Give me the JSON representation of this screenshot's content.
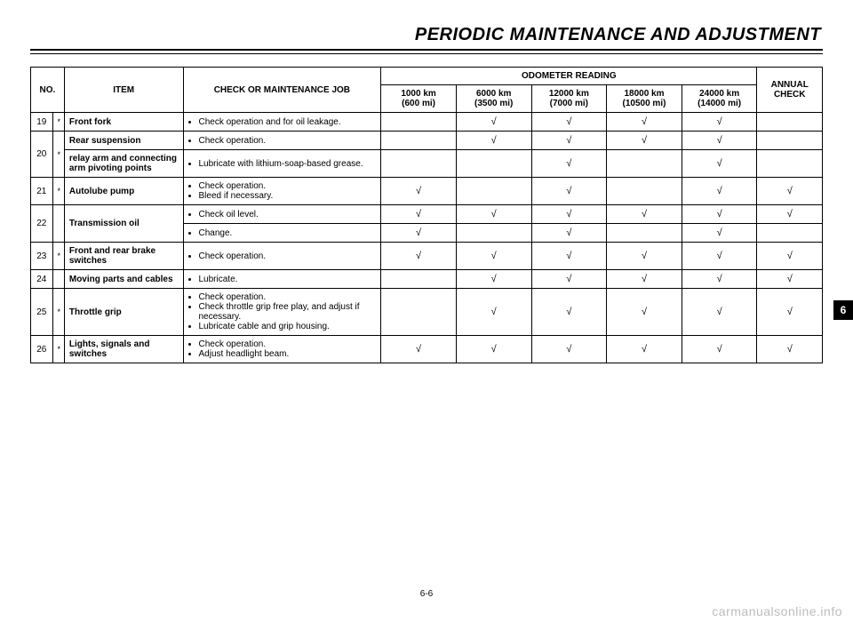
{
  "page": {
    "title": "PERIODIC MAINTENANCE AND ADJUSTMENT",
    "footer": "6-6",
    "tab": "6",
    "watermark": "carmanualsonline.info"
  },
  "table": {
    "headers": {
      "no": "NO.",
      "item": "ITEM",
      "job": "CHECK OR MAINTENANCE JOB",
      "odometer": "ODOMETER READING",
      "annual": "ANNUAL CHECK",
      "cols": [
        {
          "top": "1000 km",
          "bot": "(600 mi)"
        },
        {
          "top": "6000 km",
          "bot": "(3500 mi)"
        },
        {
          "top": "12000 km",
          "bot": "(7000 mi)"
        },
        {
          "top": "18000 km",
          "bot": "(10500 mi)"
        },
        {
          "top": "24000 km",
          "bot": "(14000 mi)"
        }
      ]
    },
    "tick": "√",
    "rows": [
      {
        "no": "19",
        "ast": "*",
        "item": "Front fork",
        "jobs": [
          {
            "text": "Check operation and for oil leakage.",
            "o": [
              "",
              "√",
              "√",
              "√",
              "√"
            ],
            "ann": ""
          }
        ]
      },
      {
        "no": "20",
        "ast": "*",
        "jobs": [
          {
            "item": "Rear suspension",
            "text": "Check operation.",
            "o": [
              "",
              "√",
              "√",
              "√",
              "√"
            ],
            "ann": ""
          },
          {
            "item": "relay arm and connecting arm pivoting points",
            "text": "Lubricate with lithium-soap-based grease.",
            "o": [
              "",
              "",
              "√",
              "",
              "√"
            ],
            "ann": ""
          }
        ]
      },
      {
        "no": "21",
        "ast": "*",
        "item": "Autolube pump",
        "jobs": [
          {
            "text_lines": [
              "Check operation.",
              "Bleed if necessary."
            ],
            "o": [
              "√",
              "",
              "√",
              "",
              "√"
            ],
            "ann": "√"
          }
        ]
      },
      {
        "no": "22",
        "ast": "",
        "item": "Transmission oil",
        "jobs": [
          {
            "text": "Check oil level.",
            "o": [
              "√",
              "√",
              "√",
              "√",
              "√"
            ],
            "ann": "√"
          },
          {
            "text": "Change.",
            "o": [
              "√",
              "",
              "√",
              "",
              "√"
            ],
            "ann": ""
          }
        ]
      },
      {
        "no": "23",
        "ast": "*",
        "item": "Front and rear brake switches",
        "jobs": [
          {
            "text": "Check operation.",
            "o": [
              "√",
              "√",
              "√",
              "√",
              "√"
            ],
            "ann": "√"
          }
        ]
      },
      {
        "no": "24",
        "ast": "",
        "item": "Moving parts and cables",
        "jobs": [
          {
            "text": "Lubricate.",
            "o": [
              "",
              "√",
              "√",
              "√",
              "√"
            ],
            "ann": "√"
          }
        ]
      },
      {
        "no": "25",
        "ast": "*",
        "item": "Throttle grip",
        "jobs": [
          {
            "text_lines": [
              "Check operation.",
              "Check throttle grip free play, and adjust if necessary.",
              "Lubricate cable and grip housing."
            ],
            "o": [
              "",
              "√",
              "√",
              "√",
              "√"
            ],
            "ann": "√"
          }
        ]
      },
      {
        "no": "26",
        "ast": "*",
        "item": "Lights, signals and switches",
        "jobs": [
          {
            "text_lines": [
              "Check operation.",
              "Adjust headlight beam."
            ],
            "o": [
              "√",
              "√",
              "√",
              "√",
              "√"
            ],
            "ann": "√"
          }
        ]
      }
    ]
  }
}
